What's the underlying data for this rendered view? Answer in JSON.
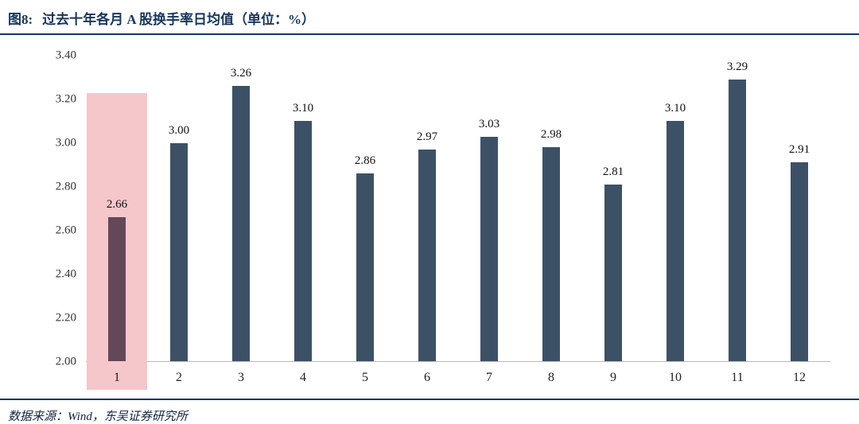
{
  "header": {
    "figure_label": "图8:",
    "title": "过去十年各月 A 股换手率日均值（单位：%）"
  },
  "footer": {
    "source": "数据来源：Wind，东吴证券研究所"
  },
  "colors": {
    "title": "#17365d",
    "rule": "#17365d",
    "bar": "#3d5166",
    "highlight_bar": "#63485a",
    "highlight_band": "#f5c6ca",
    "axis_line": "#b9b9b9"
  },
  "chart_data": {
    "type": "bar",
    "title": "过去十年各月 A 股换手率日均值（单位：%）",
    "xlabel": "",
    "ylabel": "",
    "categories": [
      "1",
      "2",
      "3",
      "4",
      "5",
      "6",
      "7",
      "8",
      "9",
      "10",
      "11",
      "12"
    ],
    "values": [
      2.66,
      3.0,
      3.26,
      3.1,
      2.86,
      2.97,
      3.03,
      2.98,
      2.81,
      3.1,
      3.29,
      2.91
    ],
    "ylim": [
      2.0,
      3.4
    ],
    "yticks": [
      "3.40",
      "3.20",
      "3.00",
      "2.80",
      "2.60",
      "2.40",
      "2.20",
      "2.00"
    ],
    "grid": false,
    "legend": "none",
    "highlight_index": 0,
    "highlight_top_value": 3.23
  }
}
